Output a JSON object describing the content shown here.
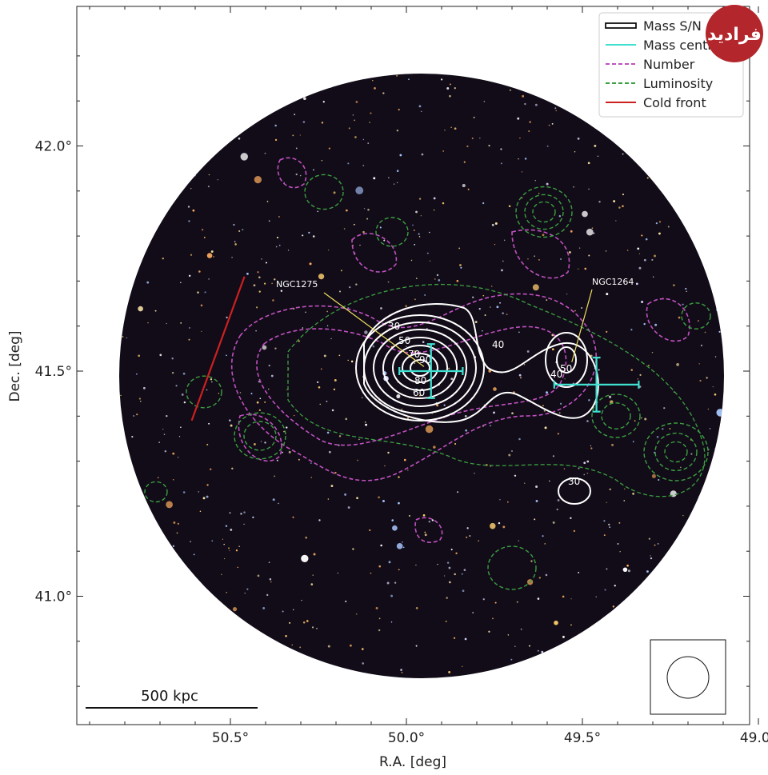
{
  "chart_data": {
    "type": "contour",
    "xlabel": "R.A. [deg]",
    "ylabel": "Dec. [deg]",
    "xlim": [
      50.95,
      48.99
    ],
    "ylim": [
      40.76,
      42.32
    ],
    "x_ticks": [
      "50.5°",
      "50.0°",
      "49.5°",
      "49.0°"
    ],
    "x_tick_values": [
      50.5,
      50.0,
      49.5,
      49.0
    ],
    "y_ticks": [
      "42.0°",
      "41.5°",
      "41.0°"
    ],
    "y_tick_values": [
      42.0,
      41.5,
      41.0
    ],
    "grid": false,
    "legend_position": "top-right",
    "legend": [
      {
        "label": "Mass S/N",
        "style": "solid-outlined",
        "color": "#ffffff"
      },
      {
        "label": "Mass centroid",
        "style": "solid",
        "color": "#40e0d0"
      },
      {
        "label": "Number",
        "style": "dashed",
        "color": "#c050c0"
      },
      {
        "label": "Luminosity",
        "style": "dashed",
        "color": "#3aa040"
      },
      {
        "label": "Cold front",
        "style": "solid",
        "color": "#cc2020"
      }
    ],
    "mass_contour_labels": [
      "30",
      "50",
      "70",
      "90",
      "80",
      "60",
      "40",
      "50",
      "40",
      "30"
    ],
    "annotations": [
      {
        "text": "NGC1275",
        "ra": 49.95,
        "dec": 41.51
      },
      {
        "text": "NGC1264",
        "ra": 49.53,
        "dec": 41.52
      }
    ],
    "mass_centroids": [
      {
        "ra": 49.93,
        "dec": 41.5,
        "ra_err": [
          50.02,
          49.84
        ],
        "dec_err": [
          41.56,
          41.44
        ]
      },
      {
        "ra": 49.46,
        "dec": 41.47,
        "ra_err": [
          49.58,
          49.34
        ],
        "dec_err": [
          41.53,
          41.41
        ]
      }
    ],
    "cold_front": {
      "ra": [
        50.46,
        50.61
      ],
      "dec": [
        41.71,
        41.39
      ]
    },
    "scale_bar": "500 kpc"
  }
}
